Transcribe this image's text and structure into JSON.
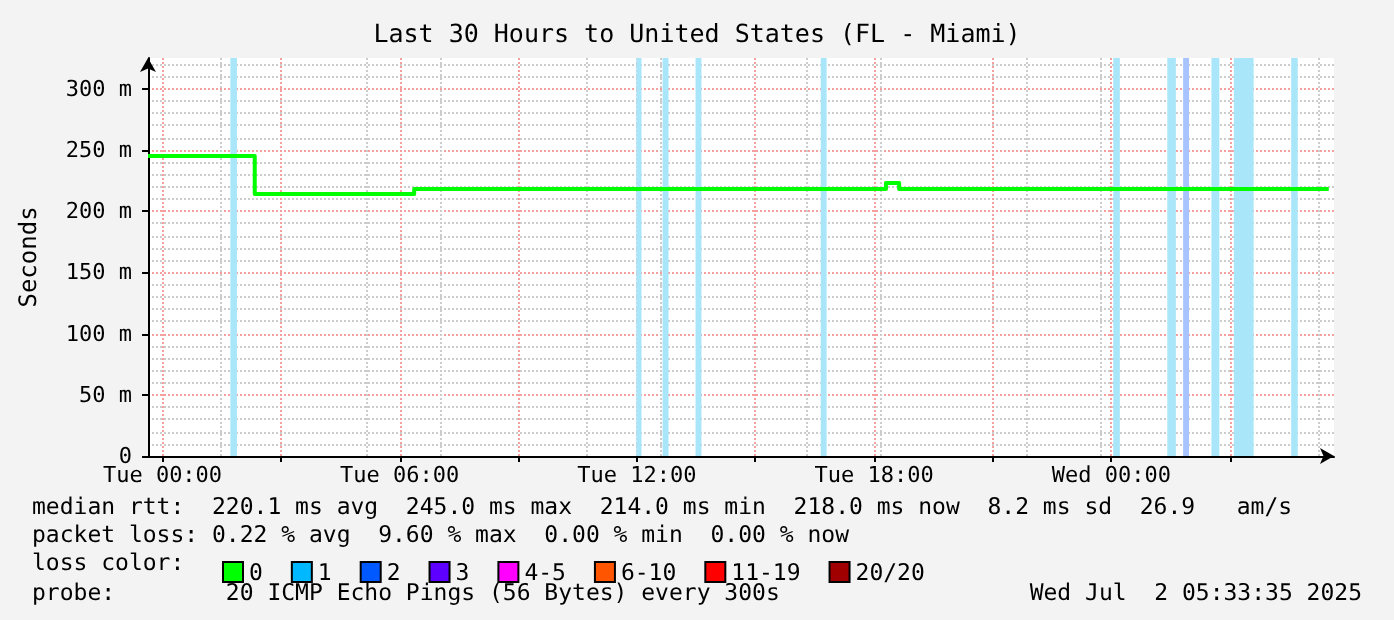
{
  "chart_data": {
    "type": "step",
    "title": "Last 30 Hours to United States (FL - Miami)",
    "ylabel": "Seconds",
    "legend_title": "loss color:",
    "xlim": [
      "2025-06-30T23:38",
      "2025-07-02T05:38"
    ],
    "xticks": [
      {
        "value": "2025-07-01T00:00",
        "label": "Tue 00:00"
      },
      {
        "value": "2025-07-01T03:00",
        "label": null
      },
      {
        "value": "2025-07-01T06:00",
        "label": "Tue 06:00"
      },
      {
        "value": "2025-07-01T09:00",
        "label": null
      },
      {
        "value": "2025-07-01T12:00",
        "label": "Tue 12:00"
      },
      {
        "value": "2025-07-01T15:00",
        "label": null
      },
      {
        "value": "2025-07-01T18:00",
        "label": "Tue 18:00"
      },
      {
        "value": "2025-07-01T21:00",
        "label": null
      },
      {
        "value": "2025-07-02T00:00",
        "label": "Wed 00:00"
      },
      {
        "value": "2025-07-02T03:00",
        "label": null
      }
    ],
    "ylim": [
      0,
      325
    ],
    "yticks": [
      0,
      {
        "value": 50,
        "label": "50 m"
      },
      {
        "value": 100,
        "label": "100 m"
      },
      {
        "value": 150,
        "label": "150 m"
      },
      {
        "value": 200,
        "label": "200 m"
      },
      {
        "value": 250,
        "label": "250 m"
      },
      {
        "value": 300,
        "label": "300 m"
      }
    ],
    "grid": true,
    "legend": "bottom left",
    "marker": "none",
    "line_style": "solid",
    "series": [
      {
        "name": "0",
        "color": "#00ff00",
        "x": [
          "2025-06-30T23:38",
          "2025-07-01T02:20",
          "2025-07-01T06:22",
          "2025-07-01T18:18",
          "2025-07-01T18:38",
          "2025-07-02T05:30"
        ],
        "values": [
          245,
          214,
          218,
          223,
          218,
          218
        ]
      },
      {
        "name": "1",
        "color": "#00b8ff"
      },
      {
        "name": "2",
        "color": "#0059ff"
      },
      {
        "name": "3",
        "color": "#5e00ff"
      },
      {
        "name": "4-5",
        "color": "#ff00ff"
      },
      {
        "name": "6-10",
        "color": "#ff5500"
      },
      {
        "name": "11-19",
        "color": "#ff0000"
      },
      {
        "name": "20/20",
        "color": "#a10000"
      }
    ],
    "bands": [
      {
        "axis": "x",
        "from": "2025-07-01T01:43",
        "to": "2025-07-01T01:53",
        "color": "#aae6fa"
      },
      {
        "axis": "x",
        "from": "2025-07-01T11:59",
        "to": "2025-07-01T12:07",
        "color": "#aae6fa"
      },
      {
        "axis": "x",
        "from": "2025-07-01T12:39",
        "to": "2025-07-01T12:48",
        "color": "#aae6fa"
      },
      {
        "axis": "x",
        "from": "2025-07-01T13:29",
        "to": "2025-07-01T13:38",
        "color": "#aae6fa"
      },
      {
        "axis": "x",
        "from": "2025-07-01T16:39",
        "to": "2025-07-01T16:48",
        "color": "#aae6fa"
      },
      {
        "axis": "x",
        "from": "2025-07-02T00:03",
        "to": "2025-07-02T00:13",
        "color": "#aae6fa"
      },
      {
        "axis": "x",
        "from": "2025-07-02T01:25",
        "to": "2025-07-02T01:38",
        "color": "#aae6fa"
      },
      {
        "axis": "x",
        "from": "2025-07-02T01:49",
        "to": "2025-07-02T01:58",
        "color": "#a8c4ff"
      },
      {
        "axis": "x",
        "from": "2025-07-02T02:32",
        "to": "2025-07-02T02:44",
        "color": "#aae6fa"
      },
      {
        "axis": "x",
        "from": "2025-07-02T03:06",
        "to": "2025-07-02T03:36",
        "color": "#aae6fa"
      },
      {
        "axis": "x",
        "from": "2025-07-02T04:33",
        "to": "2025-07-02T04:43",
        "color": "#aae6fa"
      }
    ],
    "annotations": [
      "median rtt:  220.1 ms avg  245.0 ms max  214.0 ms min  218.0 ms now  8.2 ms sd  26.9   am/s",
      "packet loss: 0.22 % avg  9.60 % max  0.00 % min  0.00 % now",
      "probe:        20 ICMP Echo Pings (56 Bytes) every 300s",
      "Wed Jul  2 05:33:35 2025"
    ]
  }
}
